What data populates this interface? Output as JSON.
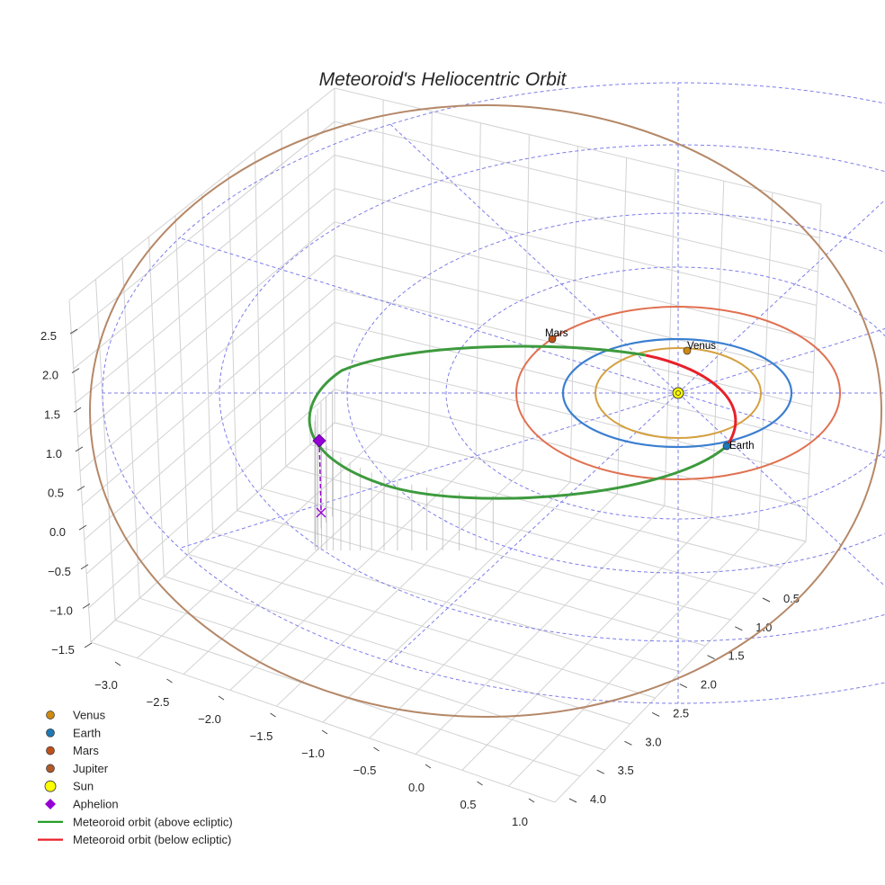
{
  "chart_data": {
    "type": "scatter3d",
    "title": "Meteoroid's Heliocentric Orbit",
    "xlabel": "",
    "ylabel": "",
    "zlabel": "",
    "x_ticks": [
      "−3.0",
      "−2.5",
      "−2.0",
      "−1.5",
      "−1.0",
      "−0.5",
      "0.0",
      "0.5",
      "1.0"
    ],
    "y_ticks": [
      "0.5",
      "1.0",
      "1.5",
      "2.0",
      "2.5",
      "3.0",
      "3.5",
      "4.0"
    ],
    "z_ticks": [
      "2.5",
      "2.0",
      "1.5",
      "1.0",
      "0.5",
      "0.0",
      "−0.5",
      "−1.0",
      "−1.5"
    ],
    "grid": true,
    "planets": [
      {
        "name": "Venus",
        "orbit_radius_au": 0.72,
        "color": "#d4a040",
        "marker": "#d08a10"
      },
      {
        "name": "Earth",
        "orbit_radius_au": 1.0,
        "color": "#3a7fd0",
        "marker": "#1f77b4"
      },
      {
        "name": "Mars",
        "orbit_radius_au": 1.52,
        "color": "#e07050",
        "marker": "#c0501a"
      },
      {
        "name": "Jupiter",
        "orbit_radius_au": 5.2,
        "color": "#b58868",
        "marker": "#b05a2a"
      }
    ],
    "sun": {
      "name": "Sun",
      "x": 0,
      "y": 0,
      "z": 0,
      "color": "#ffff00"
    },
    "aphelion": {
      "name": "Aphelion",
      "approx_x": -3.0,
      "approx_y": 2.6,
      "approx_z": 1.1,
      "color": "#9400d3"
    },
    "meteoroid_orbit": [
      {
        "name": "Meteoroid orbit (above ecliptic)",
        "color": "#2ca02c"
      },
      {
        "name": "Meteoroid orbit (below ecliptic)",
        "color": "#e8202a"
      }
    ],
    "ecliptic_grid": {
      "style": "dashed",
      "color": "#6f6fe8"
    },
    "legend_position": "lower-left"
  },
  "legend": [
    {
      "label": "Venus",
      "marker": "circle",
      "color": "#d08a10"
    },
    {
      "label": "Earth",
      "marker": "circle",
      "color": "#1f77b4"
    },
    {
      "label": "Mars",
      "marker": "circle",
      "color": "#c0501a"
    },
    {
      "label": "Jupiter",
      "marker": "circle",
      "color": "#b05a2a"
    },
    {
      "label": "Sun",
      "marker": "sun",
      "color": "#ffff00"
    },
    {
      "label": "Aphelion",
      "marker": "diamond",
      "color": "#9400d3"
    },
    {
      "label": "Meteoroid orbit (above ecliptic)",
      "marker": "line",
      "color": "#1a9a1a"
    },
    {
      "label": "Meteoroid orbit (below ecliptic)",
      "marker": "line",
      "color": "#e8202a"
    }
  ]
}
